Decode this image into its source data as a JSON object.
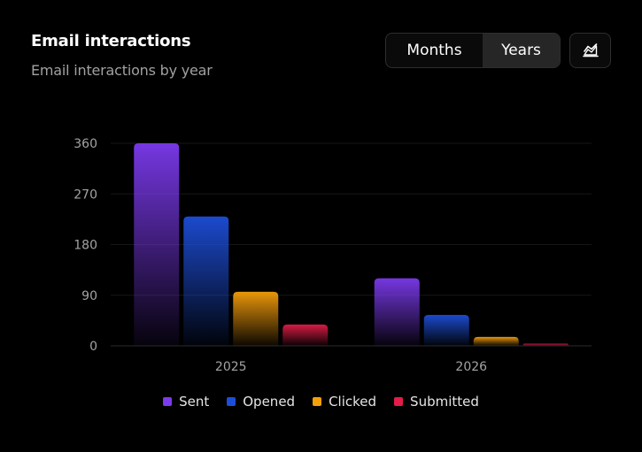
{
  "header": {
    "title": "Email interactions",
    "subtitle": "Email interactions by year"
  },
  "toggle": {
    "months_label": "Months",
    "years_label": "Years",
    "selected": "Years"
  },
  "icons": {
    "chart_type_button": "area-chart-icon"
  },
  "chart_data": {
    "type": "bar",
    "title": "Email interactions",
    "subtitle": "Email interactions by year",
    "categories": [
      "2025",
      "2026"
    ],
    "series": [
      {
        "name": "Sent",
        "values": [
          360,
          120
        ],
        "color": "#7c3aed"
      },
      {
        "name": "Opened",
        "values": [
          230,
          55
        ],
        "color": "#1d4ed8"
      },
      {
        "name": "Clicked",
        "values": [
          96,
          16
        ],
        "color": "#f59e0b"
      },
      {
        "name": "Submitted",
        "values": [
          38,
          4
        ],
        "color": "#e11d48"
      }
    ],
    "ylim": [
      0,
      360
    ],
    "yticks": [
      0,
      90,
      180,
      270,
      360
    ],
    "grid": true,
    "legend": "bottom-center"
  }
}
